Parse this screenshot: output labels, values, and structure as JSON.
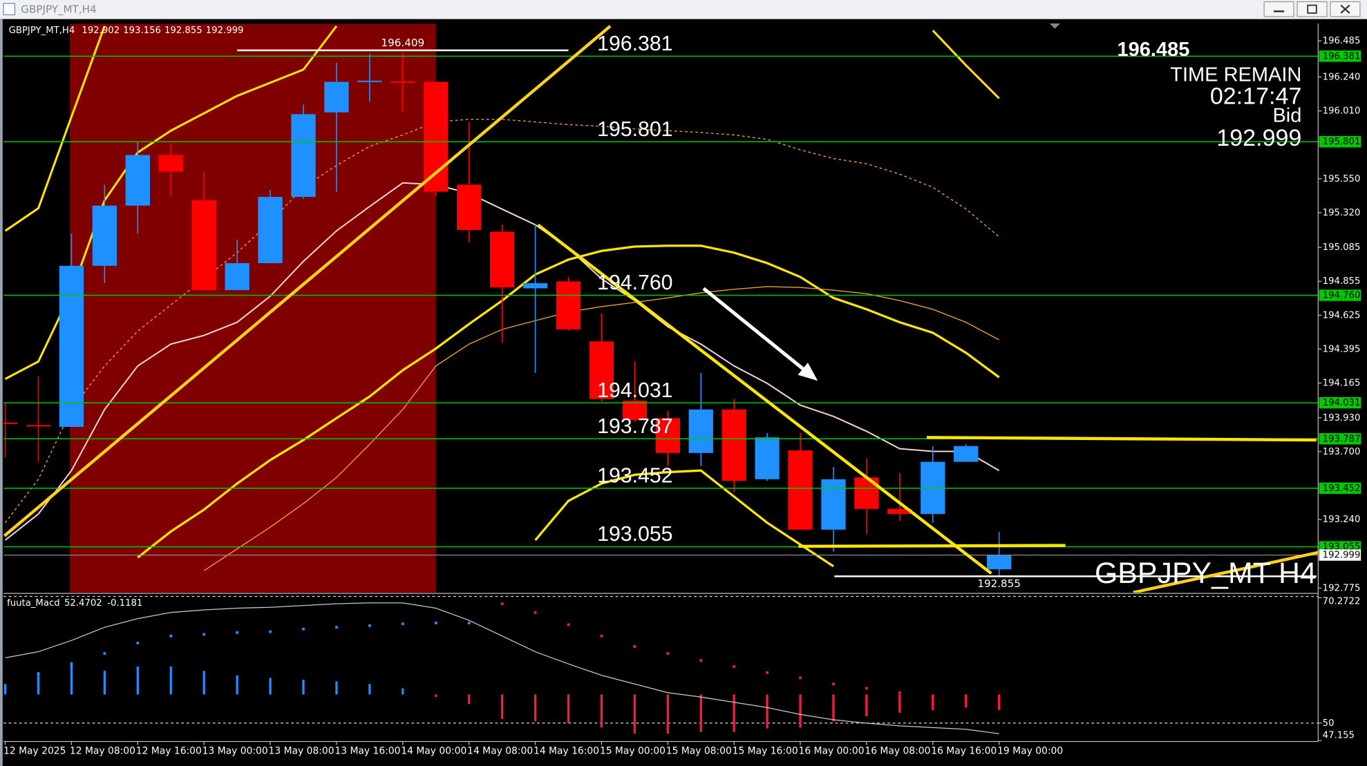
{
  "window": {
    "title": "GBPJPY_MT,H4"
  },
  "chart_data": [
    {
      "type": "candlestick",
      "title": "GBPJPY_MT,H4",
      "watermark": "GBPJPY_MT H4",
      "categories": [
        "12 May 2025",
        null,
        "12 May 08:00",
        null,
        "12 May 16:00",
        null,
        "13 May 00:00",
        null,
        "13 May 08:00",
        null,
        "13 May 16:00",
        null,
        "14 May 00:00",
        null,
        "14 May 08:00",
        null,
        "14 May 16:00",
        null,
        "15 May 00:00",
        null,
        "15 May 08:00",
        null,
        "15 May 16:00",
        null,
        "16 May 00:00",
        null,
        "16 May 08:00",
        null,
        "16 May 16:00",
        null,
        "19 May 00:00"
      ],
      "open": [
        193.897,
        193.88,
        193.868,
        194.96,
        195.368,
        195.711,
        195.404,
        194.795,
        194.978,
        195.427,
        196.0,
        196.213,
        196.21,
        196.207,
        195.51,
        195.191,
        194.807,
        194.854,
        194.447,
        194.045,
        193.927,
        193.691,
        193.986,
        193.513,
        193.708,
        193.171,
        193.525,
        193.312,
        193.277,
        193.631,
        192.902
      ],
      "high": [
        194.03,
        194.21,
        195.179,
        195.51,
        195.805,
        195.787,
        195.593,
        195.138,
        195.474,
        196.053,
        196.337,
        196.396,
        196.409,
        196.207,
        195.935,
        195.238,
        195.238,
        194.884,
        194.636,
        194.311,
        193.974,
        194.234,
        194.057,
        193.826,
        193.826,
        193.596,
        193.655,
        193.555,
        193.738,
        193.75,
        193.156
      ],
      "low": [
        193.66,
        193.63,
        193.868,
        194.842,
        195.179,
        195.433,
        194.795,
        194.795,
        194.978,
        195.415,
        195.462,
        196.071,
        196.006,
        195.433,
        195.12,
        194.441,
        194.234,
        194.52,
        194.04,
        193.9,
        193.602,
        193.602,
        193.425,
        193.502,
        193.171,
        193.023,
        193.141,
        193.23,
        193.218,
        193.631,
        192.855
      ],
      "close": [
        193.89,
        193.875,
        194.96,
        195.368,
        195.711,
        195.598,
        194.795,
        194.978,
        195.427,
        195.988,
        196.207,
        196.215,
        196.205,
        195.462,
        195.203,
        194.813,
        194.842,
        194.529,
        194.057,
        193.915,
        193.691,
        193.986,
        193.502,
        193.797,
        193.171,
        193.513,
        193.312,
        193.277,
        193.631,
        193.738,
        192.999
      ],
      "up_color": "#1e90ff",
      "down_color": "#ff0000",
      "ylim": [
        192.745,
        196.6
      ],
      "yticks": [
        196.485,
        {
          "value": 196.24,
          "label": "196.240"
        },
        {
          "value": 196.01,
          "label": "196.010"
        },
        {
          "value": 195.55,
          "label": "195.550"
        },
        {
          "value": 195.32,
          "label": "195.320"
        },
        195.085,
        194.855,
        194.625,
        194.395,
        194.165,
        {
          "value": 193.93,
          "label": "193.930"
        },
        {
          "value": 193.7,
          "label": "193.700"
        },
        {
          "value": 193.24,
          "label": "193.240"
        },
        192.775
      ],
      "grid": false,
      "levels": [
        196.381,
        195.801,
        {
          "value": 194.76,
          "label": "194.760"
        },
        194.031,
        193.787,
        193.452,
        193.055
      ],
      "level_color": "#00c800",
      "series": [
        {
          "color": "#f2d4d4",
          "values": [
            193.1,
            193.277,
            193.572,
            193.986,
            194.281,
            194.429,
            194.488,
            194.577,
            194.754,
            194.99,
            195.197,
            195.362,
            195.522,
            195.51,
            195.451,
            195.344,
            195.238,
            195.079,
            194.872,
            194.724,
            194.547,
            194.429,
            194.281,
            194.163,
            194.015,
            193.939,
            193.838,
            193.72,
            193.702,
            193.702,
            193.572
          ]
        },
        {
          "color": "#ffe600",
          "values": [
            null,
            null,
            null,
            null,
            192.982,
            193.159,
            193.307,
            193.484,
            193.643,
            193.779,
            193.927,
            194.074,
            194.252,
            194.399,
            194.565,
            194.724,
            194.901,
            195.002,
            195.061,
            195.09,
            195.096,
            195.096,
            195.049,
            194.978,
            194.884,
            194.742,
            194.665,
            194.577,
            194.506,
            194.37,
            194.204
          ]
        },
        {
          "color": "#ffe600",
          "values": [
            195.197,
            195.35,
            195.971,
            196.585,
            null,
            null,
            null,
            null,
            null,
            null,
            null,
            null,
            null,
            null,
            null,
            null,
            null,
            null,
            null,
            null,
            null,
            null,
            null,
            null,
            null,
            null,
            null,
            null,
            196.555,
            196.319,
            196.095
          ]
        },
        {
          "color": "#ffe600",
          "values": [
            194.193,
            194.311,
            194.783,
            195.404,
            195.728,
            195.876,
            195.994,
            196.112,
            196.201,
            196.29,
            196.585,
            null,
            null,
            null,
            null,
            null,
            null,
            null,
            null,
            null,
            null,
            null,
            null,
            null,
            null,
            null,
            null,
            null,
            null,
            null,
            null
          ]
        },
        {
          "color": "#ffe600",
          "values": [
            null,
            null,
            null,
            null,
            null,
            null,
            null,
            null,
            null,
            null,
            null,
            null,
            null,
            null,
            null,
            null,
            193.1,
            193.366,
            193.484,
            193.543,
            193.561,
            193.572,
            193.395,
            193.218,
            193.07,
            192.923,
            null,
            null,
            null,
            null,
            null
          ]
        },
        {
          "color": "#e8a030",
          "values": [
            null,
            null,
            null,
            null,
            null,
            null,
            192.893,
            193.041,
            193.188,
            193.348,
            193.525,
            193.75,
            193.986,
            194.281,
            194.429,
            194.529,
            194.588,
            194.647,
            194.683,
            194.712,
            194.742,
            194.777,
            194.801,
            194.819,
            194.813,
            194.795,
            194.771,
            194.724,
            194.665,
            194.577,
            194.458
          ]
        },
        {
          "color": "#e8a030",
          "dashed": true,
          "values": [
            193.218,
            193.513,
            193.986,
            194.281,
            194.517,
            194.695,
            194.872,
            195.049,
            195.256,
            195.492,
            195.64,
            195.77,
            195.847,
            195.935,
            195.953,
            195.953,
            195.935,
            195.917,
            195.906,
            195.888,
            195.876,
            195.864,
            195.847,
            195.817,
            195.746,
            195.687,
            195.652,
            195.581,
            195.492,
            195.345,
            195.156
          ]
        }
      ],
      "info": {
        "high_display": 196.485,
        "time_remain_label": "TIME REMAIN",
        "time_remain": "02:17:47",
        "bid_label": "Bid"
      }
    },
    {
      "type": "macd",
      "title": "fuuta_Macd",
      "readings": [
        52.4702,
        -0.1181
      ],
      "ylim": [
        47.155,
        70.2722
      ],
      "yticks": [
        70.2722,
        50,
        47.155
      ],
      "up_color": "#1e90ff",
      "down_color": "#ff1a3c",
      "line_color": "#c8c8c8",
      "line": [
        60.55,
        61.54,
        63.37,
        65.49,
        66.9,
        67.89,
        68.31,
        68.59,
        68.73,
        69.02,
        69.3,
        69.44,
        69.44,
        68.59,
        66.62,
        64.08,
        61.54,
        59.57,
        57.73,
        56.32,
        54.91,
        54.21,
        53.36,
        52.51,
        51.39,
        50.54,
        49.98,
        49.55,
        49.27,
        48.99,
        48.28
      ],
      "dots": [
        55.62,
        58.02,
        59.42,
        61.26,
        62.95,
        64.08,
        64.36,
        64.64,
        64.78,
        65.21,
        65.49,
        65.77,
        66.05,
        66.19,
        66.19,
        69.3,
        67.89,
        65.91,
        64.08,
        62.39,
        61.26,
        60.13,
        59.14,
        58.16,
        57.31,
        56.32,
        55.62,
        54.91,
        54.21,
        53.92,
        53.79
      ],
      "histogram": [
        [
          54.63,
          56.32
        ],
        [
          54.63,
          58.16
        ],
        [
          54.63,
          59.85
        ],
        [
          54.63,
          58.44
        ],
        [
          54.63,
          59.14
        ],
        [
          54.63,
          59.14
        ],
        [
          54.63,
          58.44
        ],
        [
          54.63,
          57.73
        ],
        [
          54.63,
          57.31
        ],
        [
          54.63,
          57.03
        ],
        [
          54.63,
          56.75
        ],
        [
          54.63,
          56.32
        ],
        [
          54.63,
          55.62
        ],
        [
          54.63,
          54.21
        ],
        [
          54.63,
          53.08
        ],
        [
          54.63,
          50.68
        ],
        [
          54.63,
          50.26
        ],
        [
          54.63,
          49.98
        ],
        [
          54.63,
          49.27
        ],
        [
          54.63,
          48.28
        ],
        [
          54.63,
          48.28
        ],
        [
          54.63,
          48.57
        ],
        [
          54.63,
          48.57
        ],
        [
          54.63,
          49.13
        ],
        [
          54.63,
          49.27
        ],
        [
          54.63,
          50.26
        ],
        [
          54.63,
          51.1
        ],
        [
          54.63,
          51.67
        ],
        [
          54.63,
          52.09
        ],
        [
          54.63,
          52.51
        ],
        [
          54.63,
          52.09
        ]
      ]
    }
  ]
}
